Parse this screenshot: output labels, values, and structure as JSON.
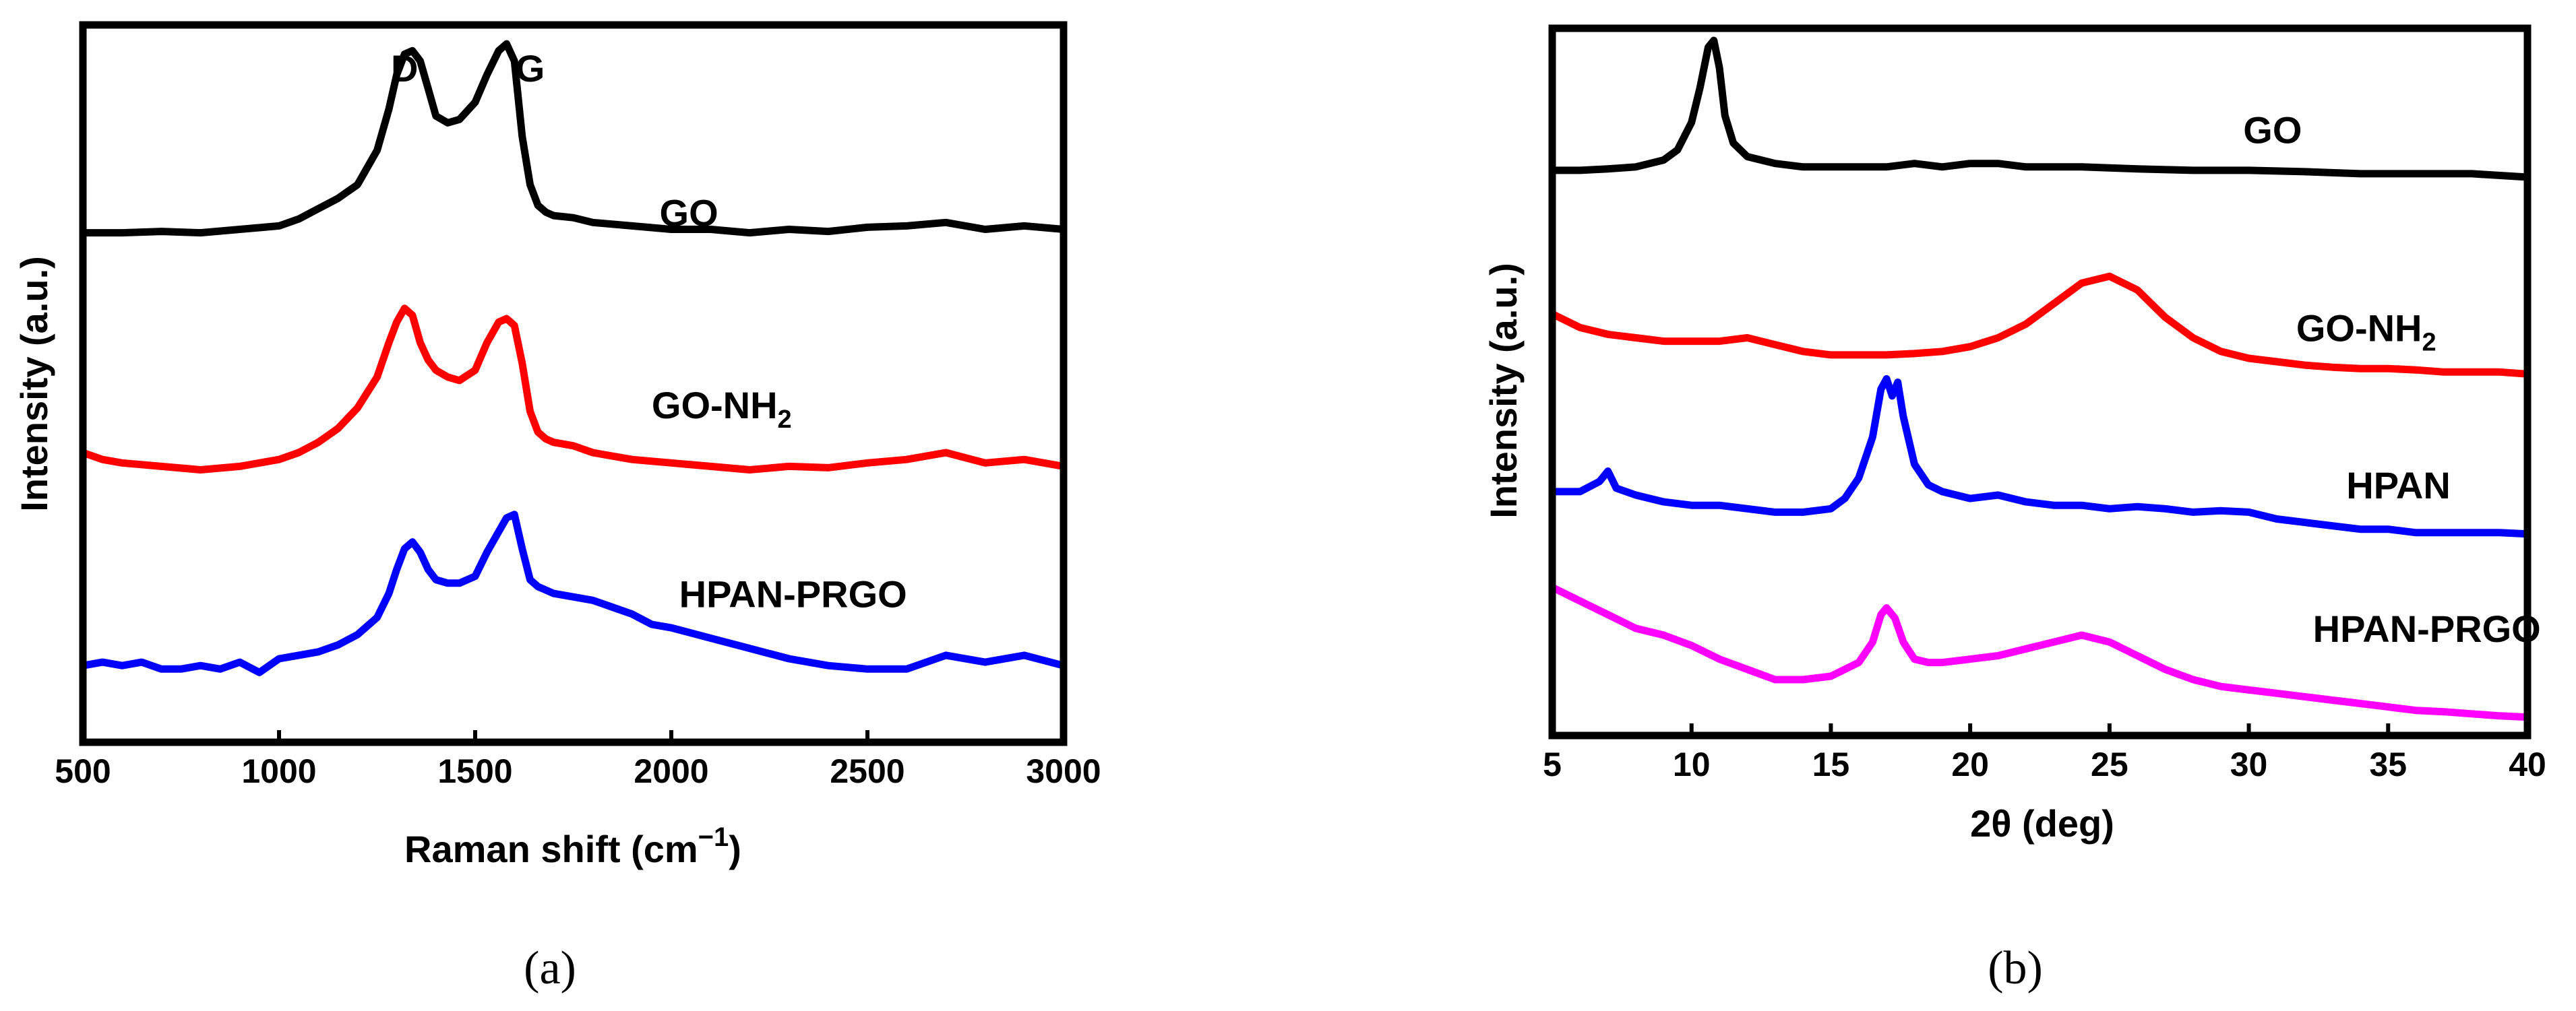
{
  "chart_data": [
    {
      "type": "line",
      "panel_label": "(a)",
      "xlabel": "Raman shift (cm",
      "xlabel_sup": "−1",
      "xlabel_end": ")",
      "ylabel": "Intensity (a.u.)",
      "xlim": [
        500,
        3000
      ],
      "ylim": [
        0,
        10
      ],
      "x_ticks": [
        500,
        1000,
        1500,
        2000,
        2500,
        3000
      ],
      "x_tick_labels": [
        "500",
        "1000",
        "1500",
        "2000",
        "2500",
        "3000"
      ],
      "yticks_shown": false,
      "annotations": [
        {
          "text": "D",
          "x": 1320,
          "y": 9.4
        },
        {
          "text": "G",
          "x": 1640,
          "y": 9.4
        }
      ],
      "series": [
        {
          "name": "GO",
          "label_main": "GO",
          "label_sub": "",
          "color": "#000000",
          "label_x": 1970,
          "label_y": 7.3,
          "x": [
            500,
            600,
            700,
            800,
            900,
            1000,
            1050,
            1100,
            1150,
            1200,
            1250,
            1280,
            1300,
            1320,
            1340,
            1360,
            1380,
            1400,
            1430,
            1460,
            1500,
            1530,
            1560,
            1580,
            1600,
            1620,
            1640,
            1660,
            1680,
            1700,
            1750,
            1800,
            1900,
            2000,
            2100,
            2200,
            2300,
            2400,
            2500,
            2600,
            2700,
            2800,
            2900,
            3000
          ],
          "y": [
            7.2,
            7.2,
            7.22,
            7.2,
            7.25,
            7.3,
            7.4,
            7.55,
            7.7,
            7.9,
            8.4,
            9.0,
            9.5,
            9.8,
            9.85,
            9.7,
            9.3,
            8.9,
            8.8,
            8.85,
            9.1,
            9.5,
            9.85,
            9.95,
            9.7,
            8.6,
            7.9,
            7.6,
            7.5,
            7.45,
            7.42,
            7.35,
            7.3,
            7.25,
            7.25,
            7.2,
            7.25,
            7.22,
            7.28,
            7.3,
            7.35,
            7.25,
            7.3,
            7.25
          ]
        },
        {
          "name": "GO-NH2",
          "label_main": "GO-NH",
          "label_sub": "2",
          "color": "#ff0000",
          "label_x": 1950,
          "label_y": 4.5,
          "x": [
            500,
            550,
            600,
            700,
            800,
            900,
            1000,
            1050,
            1100,
            1150,
            1200,
            1250,
            1280,
            1300,
            1320,
            1340,
            1360,
            1380,
            1400,
            1430,
            1460,
            1500,
            1530,
            1560,
            1580,
            1600,
            1620,
            1640,
            1660,
            1680,
            1700,
            1750,
            1800,
            1900,
            2000,
            2100,
            2200,
            2300,
            2400,
            2500,
            2600,
            2700,
            2800,
            2900,
            3000
          ],
          "y": [
            4.0,
            3.9,
            3.85,
            3.8,
            3.75,
            3.8,
            3.9,
            4.0,
            4.15,
            4.35,
            4.65,
            5.1,
            5.6,
            5.9,
            6.1,
            6.0,
            5.6,
            5.35,
            5.2,
            5.1,
            5.05,
            5.2,
            5.6,
            5.9,
            5.95,
            5.85,
            5.3,
            4.6,
            4.3,
            4.2,
            4.15,
            4.1,
            4.0,
            3.9,
            3.85,
            3.8,
            3.75,
            3.8,
            3.78,
            3.85,
            3.9,
            4.0,
            3.85,
            3.9,
            3.8
          ]
        },
        {
          "name": "HPAN-PRGO",
          "label_main": "HPAN-PRGO",
          "label_sub": "",
          "color": "#0000ff",
          "label_x": 2020,
          "label_y": 1.75,
          "x": [
            500,
            550,
            600,
            650,
            700,
            750,
            800,
            850,
            900,
            950,
            1000,
            1050,
            1100,
            1150,
            1200,
            1250,
            1280,
            1300,
            1320,
            1340,
            1360,
            1380,
            1400,
            1430,
            1460,
            1500,
            1530,
            1560,
            1580,
            1600,
            1620,
            1640,
            1660,
            1680,
            1700,
            1750,
            1800,
            1850,
            1900,
            1950,
            2000,
            2100,
            2200,
            2300,
            2400,
            2500,
            2600,
            2700,
            2800,
            2900,
            3000
          ],
          "y": [
            0.9,
            0.95,
            0.9,
            0.95,
            0.85,
            0.85,
            0.9,
            0.85,
            0.95,
            0.8,
            1.0,
            1.05,
            1.1,
            1.2,
            1.35,
            1.6,
            1.95,
            2.3,
            2.6,
            2.7,
            2.55,
            2.3,
            2.15,
            2.1,
            2.1,
            2.2,
            2.55,
            2.85,
            3.05,
            3.1,
            2.6,
            2.15,
            2.05,
            2.0,
            1.95,
            1.9,
            1.85,
            1.75,
            1.65,
            1.5,
            1.45,
            1.3,
            1.15,
            1.0,
            0.9,
            0.85,
            0.85,
            1.05,
            0.95,
            1.05,
            0.9
          ]
        }
      ]
    },
    {
      "type": "line",
      "panel_label": "(b)",
      "xlabel": "2θ (deg)",
      "ylabel": "Intensity (a.u.)",
      "xlim": [
        5,
        40
      ],
      "ylim": [
        0,
        10
      ],
      "x_ticks": [
        5,
        10,
        15,
        20,
        25,
        30,
        35,
        40
      ],
      "x_tick_labels": [
        "5",
        "10",
        "15",
        "20",
        "25",
        "30",
        "35",
        "40"
      ],
      "yticks_shown": false,
      "series": [
        {
          "name": "GO",
          "label_main": "GO",
          "label_sub": "",
          "color": "#000000",
          "label_x": 29.8,
          "label_y": 8.5,
          "x": [
            5,
            6,
            7,
            8,
            9,
            9.5,
            10,
            10.3,
            10.6,
            10.8,
            11.0,
            11.2,
            11.5,
            12,
            12.5,
            13,
            14,
            15,
            16,
            17,
            18,
            19,
            20,
            21,
            22,
            24,
            26,
            28,
            30,
            32,
            34,
            36,
            38,
            40
          ],
          "y": [
            8.1,
            8.1,
            8.12,
            8.15,
            8.25,
            8.4,
            8.8,
            9.3,
            9.9,
            10.0,
            9.6,
            8.9,
            8.5,
            8.3,
            8.25,
            8.2,
            8.15,
            8.15,
            8.15,
            8.15,
            8.2,
            8.15,
            8.2,
            8.2,
            8.15,
            8.15,
            8.12,
            8.1,
            8.1,
            8.08,
            8.05,
            8.05,
            8.05,
            8.0
          ]
        },
        {
          "name": "GO-NH2",
          "label_main": "GO-NH",
          "label_sub": "2",
          "color": "#ff0000",
          "label_x": 31.7,
          "label_y": 5.6,
          "x": [
            5,
            6,
            7,
            8,
            9,
            10,
            11,
            12,
            13,
            14,
            15,
            16,
            17,
            18,
            19,
            20,
            21,
            22,
            23,
            24,
            25,
            26,
            27,
            28,
            29,
            30,
            31,
            32,
            33,
            34,
            35,
            36,
            37,
            38,
            39,
            40
          ],
          "y": [
            6.0,
            5.8,
            5.7,
            5.65,
            5.6,
            5.6,
            5.6,
            5.65,
            5.55,
            5.45,
            5.4,
            5.4,
            5.4,
            5.42,
            5.45,
            5.52,
            5.65,
            5.85,
            6.15,
            6.45,
            6.55,
            6.35,
            5.95,
            5.65,
            5.45,
            5.35,
            5.3,
            5.25,
            5.22,
            5.2,
            5.2,
            5.18,
            5.15,
            5.15,
            5.15,
            5.12
          ]
        },
        {
          "name": "HPAN",
          "label_main": "HPAN",
          "label_sub": "",
          "color": "#0000ff",
          "label_x": 33.5,
          "label_y": 3.3,
          "x": [
            5,
            6,
            6.7,
            7,
            7.3,
            8,
            9,
            10,
            11,
            12,
            13,
            14,
            15,
            15.5,
            16,
            16.5,
            16.8,
            17.0,
            17.2,
            17.4,
            17.6,
            18,
            18.5,
            19,
            20,
            21,
            22,
            23,
            24,
            25,
            26,
            27,
            28,
            29,
            30,
            31,
            32,
            33,
            34,
            35,
            36,
            37,
            38,
            39,
            40
          ],
          "y": [
            3.4,
            3.4,
            3.55,
            3.7,
            3.45,
            3.35,
            3.25,
            3.2,
            3.2,
            3.15,
            3.1,
            3.1,
            3.15,
            3.3,
            3.6,
            4.2,
            4.9,
            5.05,
            4.8,
            5.0,
            4.5,
            3.8,
            3.5,
            3.4,
            3.3,
            3.35,
            3.25,
            3.2,
            3.2,
            3.15,
            3.18,
            3.15,
            3.1,
            3.12,
            3.1,
            3.0,
            2.95,
            2.9,
            2.85,
            2.85,
            2.8,
            2.8,
            2.8,
            2.8,
            2.78
          ]
        },
        {
          "name": "HPAN-PRGO",
          "label_main": "HPAN-PRGO",
          "label_sub": "",
          "color": "#ff00ff",
          "label_x": 32.3,
          "label_y": 1.2,
          "x": [
            5,
            6,
            7,
            8,
            9,
            10,
            11,
            12,
            13,
            14,
            15,
            16,
            16.5,
            16.8,
            17.0,
            17.3,
            17.6,
            18,
            18.5,
            19,
            20,
            21,
            22,
            23,
            24,
            25,
            26,
            27,
            28,
            29,
            30,
            31,
            32,
            33,
            34,
            35,
            36,
            37,
            38,
            39,
            40
          ],
          "y": [
            2.0,
            1.8,
            1.6,
            1.4,
            1.3,
            1.15,
            0.95,
            0.8,
            0.65,
            0.65,
            0.7,
            0.9,
            1.2,
            1.6,
            1.7,
            1.55,
            1.2,
            0.95,
            0.9,
            0.9,
            0.95,
            1.0,
            1.1,
            1.2,
            1.3,
            1.2,
            1.0,
            0.8,
            0.65,
            0.55,
            0.5,
            0.45,
            0.4,
            0.35,
            0.3,
            0.25,
            0.2,
            0.18,
            0.15,
            0.12,
            0.1
          ]
        }
      ]
    }
  ]
}
